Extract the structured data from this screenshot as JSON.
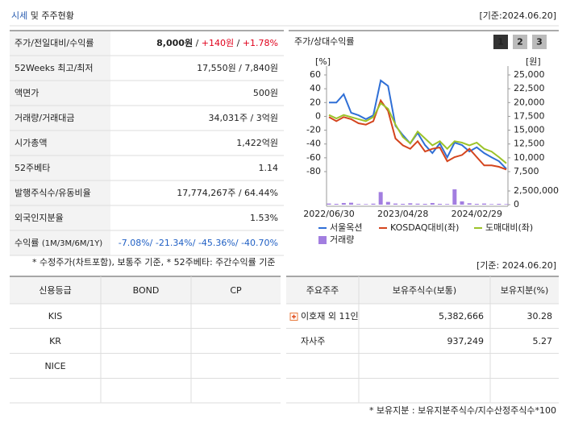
{
  "header": {
    "title": [
      {
        "text": "시세",
        "color": "#2a5db0"
      },
      {
        "text": " 및 주주현황"
      }
    ],
    "date": "[기준:2024.06.20]"
  },
  "summary_table": {
    "rows": [
      {
        "label": "주가/전일대비/수익률",
        "value": [
          {
            "text": "8,000원",
            "bold": true
          },
          {
            "text": " / "
          },
          {
            "text": "+140원",
            "color": "#e0001b"
          },
          {
            "text": " / "
          },
          {
            "text": "+1.78%",
            "color": "#e0001b"
          }
        ]
      },
      {
        "label": "52Weeks 최고/최저",
        "value": "17,550원 / 7,840원"
      },
      {
        "label": "액면가",
        "value": "500원"
      },
      {
        "label": "거래량/거래대금",
        "value": "34,031주 / 3억원"
      },
      {
        "label": "시가총액",
        "value": "1,422억원"
      },
      {
        "label": "52주베타",
        "value": "1.14"
      },
      {
        "label": "발행주식수/유동비율",
        "value": "17,774,267주 / 64.44%"
      },
      {
        "label": "외국인지분율",
        "value": "1.53%"
      },
      {
        "label": [
          {
            "text": "수익률 "
          },
          {
            "text": "(1M/3M/6M/1Y)",
            "small": true
          }
        ],
        "value": [
          {
            "text": "-7.08%/ -21.34%/ -45.36%/ -40.70%",
            "color": "#1f5fc4"
          }
        ]
      }
    ]
  },
  "summary_note": "* 수정주가(차트포함), 보통주 기준, * 52주베타: 주간수익률 기준",
  "chart_panel": {
    "title": "주가/상대수익률",
    "tabs": [
      "1",
      "2",
      "3"
    ],
    "active_tab": 0,
    "date": "[기준: 2024.06.20]"
  },
  "chart_data": {
    "type": "line",
    "y_unit": "[%]",
    "y2_unit": "[원]",
    "categories": [
      "2022/06/30",
      null,
      null,
      null,
      null,
      null,
      null,
      null,
      null,
      null,
      "2023/04/28",
      null,
      null,
      null,
      null,
      null,
      null,
      null,
      null,
      null,
      "2024/02/29",
      null,
      null,
      null,
      null
    ],
    "ylim": [
      -80,
      60
    ],
    "yticks": [
      60,
      40,
      20,
      0,
      -20,
      -40,
      -60,
      -80
    ],
    "y2lim": [
      7500,
      25000
    ],
    "y2ticks": [
      {
        "value": 25000,
        "label": "25,000"
      },
      {
        "value": 22500,
        "label": "22,500"
      },
      {
        "value": 20000,
        "label": "20,000"
      },
      {
        "value": 17500,
        "label": "17,500"
      },
      {
        "value": 15000,
        "label": "15,000"
      },
      {
        "value": 12500,
        "label": "12,500"
      },
      {
        "value": 10000,
        "label": "10,000"
      },
      {
        "value": 7500,
        "label": "7,500"
      }
    ],
    "series": [
      {
        "name": "서울옥션",
        "color": "#2f6fd6",
        "axis": "y2",
        "values": [
          20000,
          20000,
          21500,
          18150,
          17700,
          17000,
          17700,
          24000,
          23000,
          15800,
          14100,
          12600,
          14500,
          12300,
          10850,
          12600,
          10100,
          12750,
          12300,
          11150,
          11900,
          10850,
          10100,
          9400,
          8000
        ]
      },
      {
        "name": "KOSDAQ대비(좌)",
        "color": "#d4451e",
        "values": [
          -1,
          -7,
          -1,
          -4,
          -10,
          -12,
          -7,
          23,
          8,
          -32,
          -42,
          -47,
          -36,
          -51,
          -47,
          -45,
          -65,
          -59,
          -56,
          -47,
          -59,
          -71,
          -71,
          -73,
          -77
        ]
      },
      {
        "name": "도매대비(좌)",
        "color": "#9cc32a",
        "values": [
          2,
          -3,
          2,
          -1,
          -4,
          -7,
          -1,
          19,
          11,
          -12,
          -30,
          -39,
          -22,
          -32,
          -42,
          -36,
          -47,
          -36,
          -38,
          -42,
          -38,
          -47,
          -51,
          -59,
          -68
        ]
      }
    ],
    "volume": {
      "name": "거래량",
      "color": "#a27ee0",
      "ylim": [
        0,
        3000000
      ],
      "yticks": [
        {
          "value": 2500000,
          "label": "2,500,000"
        },
        0
      ],
      "values": [
        200000,
        150000,
        300000,
        350000,
        120000,
        100000,
        180000,
        2300000,
        500000,
        200000,
        150000,
        250000,
        180000,
        150000,
        300000,
        150000,
        120000,
        2800000,
        600000,
        250000,
        150000,
        200000,
        100000,
        150000,
        100000
      ]
    }
  },
  "credit_table": {
    "header": [
      "신용등급",
      "BOND",
      "CP"
    ],
    "rows": [
      [
        "KIS"
      ],
      [
        "KR"
      ],
      [
        "NICE"
      ]
    ]
  },
  "shareholder_table": {
    "header": [
      "주요주주",
      "보유주식수(보통)",
      "보유지분(%)"
    ],
    "rows": [
      [
        "이호재 외 11인",
        "5,382,666",
        "30.28"
      ],
      [
        "자사주",
        "937,249",
        "5.27"
      ]
    ]
  },
  "shareholder_note": "* 보유지분 : 보유지분주식수/지수산정주식수*100"
}
